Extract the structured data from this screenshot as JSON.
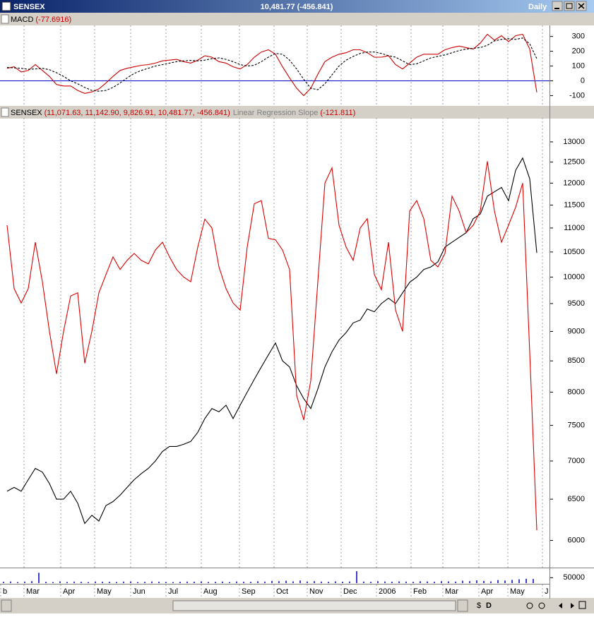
{
  "window": {
    "title": "SENSEX",
    "quote": "10,481.77 (-456.841)",
    "period": "Daily"
  },
  "toolbar": {
    "dollar": "$",
    "d": "D"
  },
  "chart_data": [
    {
      "type": "line",
      "title": "MACD",
      "title_value": "(-77.6916)",
      "ylim": [
        -160,
        370
      ],
      "yticks": [
        -100,
        0,
        100,
        200,
        300
      ],
      "xlim": [
        -0.5,
        77.3
      ],
      "reference_line": {
        "value": 0,
        "color": "#0000cc"
      },
      "series": [
        {
          "color": "#cc0000",
          "dashed": false,
          "values": [
            85,
            95,
            60,
            70,
            110,
            70,
            30,
            -25,
            -35,
            -35,
            -65,
            -85,
            -75,
            -55,
            -15,
            30,
            70,
            85,
            95,
            105,
            110,
            120,
            135,
            140,
            145,
            130,
            120,
            140,
            170,
            160,
            130,
            120,
            95,
            80,
            110,
            160,
            195,
            210,
            180,
            95,
            20,
            -50,
            -100,
            -50,
            45,
            130,
            160,
            180,
            190,
            210,
            210,
            190,
            160,
            160,
            170,
            110,
            80,
            120,
            160,
            180,
            180,
            180,
            210,
            225,
            235,
            225,
            215,
            255,
            315,
            275,
            305,
            265,
            305,
            315,
            215,
            -78
          ]
        },
        {
          "color": "#000000",
          "dashed": true,
          "values": [
            90,
            88,
            85,
            78,
            80,
            85,
            75,
            55,
            30,
            0,
            -20,
            -45,
            -65,
            -70,
            -65,
            -45,
            -15,
            20,
            50,
            70,
            85,
            100,
            110,
            120,
            130,
            135,
            138,
            135,
            140,
            150,
            155,
            145,
            130,
            110,
            100,
            105,
            130,
            160,
            185,
            180,
            140,
            80,
            10,
            -50,
            -60,
            -20,
            40,
            100,
            140,
            165,
            185,
            195,
            195,
            185,
            170,
            160,
            135,
            110,
            115,
            135,
            155,
            165,
            175,
            190,
            205,
            215,
            220,
            225,
            240,
            270,
            280,
            285,
            280,
            290,
            250,
            150
          ]
        }
      ]
    },
    {
      "type": "line",
      "title": "SENSEX",
      "title_value": "(11,071.63, 11,142.90, 9,826.91, 10,481.77, -456.841)",
      "log_scale": true,
      "ylim": [
        5700,
        13600
      ],
      "xlim": [
        -0.5,
        77.3
      ],
      "yticks": [
        6000,
        6500,
        7000,
        7500,
        8000,
        8500,
        9000,
        9500,
        10000,
        10500,
        11000,
        11500,
        12000,
        12500,
        13000
      ],
      "series": [
        {
          "color": "#000000",
          "dashed": false,
          "values": [
            6600,
            6650,
            6600,
            6750,
            6900,
            6850,
            6700,
            6500,
            6500,
            6600,
            6450,
            6200,
            6300,
            6230,
            6420,
            6470,
            6550,
            6650,
            6750,
            6830,
            6900,
            7000,
            7130,
            7200,
            7200,
            7230,
            7270,
            7400,
            7600,
            7750,
            7700,
            7800,
            7600,
            7800,
            8000,
            8200,
            8400,
            8600,
            8800,
            8500,
            8400,
            8100,
            7900,
            7750,
            8050,
            8400,
            8650,
            8850,
            8980,
            9150,
            9200,
            9400,
            9350,
            9500,
            9600,
            9500,
            9700,
            9900,
            10000,
            10150,
            10200,
            10300,
            10600,
            10700,
            10800,
            10900,
            11200,
            11300,
            11700,
            11800,
            11900,
            11600,
            12300,
            12600,
            12100,
            10482
          ]
        },
        {
          "name": "Linear Regression Slope",
          "value_label": "(-121.811)",
          "color": "#dd0000",
          "dashed": false,
          "values": [
            11060,
            9780,
            9510,
            9780,
            10700,
            9910,
            9000,
            8290,
            9000,
            9640,
            9700,
            8460,
            9000,
            9700,
            10050,
            10400,
            10150,
            10330,
            10470,
            10330,
            10260,
            10540,
            10700,
            10400,
            10150,
            10000,
            9910,
            10600,
            11190,
            11000,
            10200,
            9780,
            9510,
            9380,
            10600,
            11530,
            11600,
            10780,
            10750,
            10540,
            10150,
            7950,
            7580,
            8180,
            9910,
            12000,
            12360,
            11060,
            10600,
            10330,
            11000,
            11200,
            10050,
            9760,
            10700,
            9380,
            9000,
            11370,
            11600,
            11200,
            10330,
            10200,
            10470,
            11700,
            11370,
            10900,
            11060,
            11370,
            12520,
            11370,
            10700,
            11060,
            11450,
            12000,
            8640,
            6120
          ]
        }
      ]
    },
    {
      "type": "bar",
      "color": "#0000c0",
      "ylim": [
        0,
        130000
      ],
      "yticks": [
        50000
      ],
      "xlim": [
        -0.5,
        77.3
      ],
      "xticks": [
        {
          "value": -0.4,
          "label": "b"
        },
        {
          "value": 2.9,
          "label": "Mar"
        },
        {
          "value": 8.1,
          "label": "Apr"
        },
        {
          "value": 12.9,
          "label": "May"
        },
        {
          "value": 18,
          "label": "Jun"
        },
        {
          "value": 23,
          "label": "Jul"
        },
        {
          "value": 28,
          "label": "Aug"
        },
        {
          "value": 33.4,
          "label": "Sep"
        },
        {
          "value": 38.3,
          "label": "Oct"
        },
        {
          "value": 43,
          "label": "Nov"
        },
        {
          "value": 47.8,
          "label": "Dec"
        },
        {
          "value": 52.8,
          "label": "2006"
        },
        {
          "value": 57.7,
          "label": "Feb"
        },
        {
          "value": 62.2,
          "label": "Mar"
        },
        {
          "value": 67.3,
          "label": "Apr"
        },
        {
          "value": 71.4,
          "label": "May"
        },
        {
          "value": 76.3,
          "label": "J"
        }
      ],
      "values": [
        12000,
        15000,
        10000,
        14000,
        18000,
        95000,
        12000,
        10000,
        16000,
        11000,
        14000,
        12000,
        10000,
        15000,
        13000,
        12000,
        11000,
        14000,
        16000,
        10000,
        12000,
        15000,
        13000,
        11000,
        10000,
        12000,
        14000,
        13000,
        16000,
        11000,
        12000,
        14000,
        10000,
        15000,
        13000,
        12000,
        17000,
        14000,
        20000,
        18000,
        22000,
        16000,
        24000,
        15000,
        18000,
        14000,
        12000,
        16000,
        13000,
        15000,
        110000,
        14000,
        12000,
        18000,
        15000,
        13000,
        16000,
        14000,
        12000,
        17000,
        15000,
        13000,
        18000,
        16000,
        14000,
        22000,
        18000,
        25000,
        20000,
        16000,
        28000,
        24000,
        30000,
        35000,
        40000,
        38000
      ]
    }
  ]
}
